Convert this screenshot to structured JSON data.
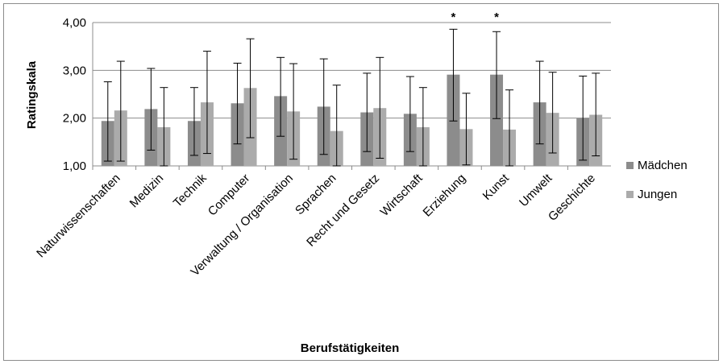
{
  "chart_data": {
    "type": "bar",
    "xlabel": "Berufstätigkeiten",
    "ylabel": "Ratingskala",
    "ylim": [
      1,
      4
    ],
    "yticks": [
      "1,00",
      "2,00",
      "3,00",
      "4,00"
    ],
    "grid": true,
    "legend_position": "right",
    "categories": [
      "Naturwissenschaften",
      "Medizin",
      "Technik",
      "Computer",
      "Verwaltung / Organisation",
      "Sprachen",
      "Recht und Gesetz",
      "Wirtschaft",
      "Erziehung",
      "Kunst",
      "Umwelt",
      "Geschichte"
    ],
    "series": [
      {
        "name": "Mädchen",
        "color": "#8c8c8c",
        "values": [
          1.94,
          2.19,
          1.94,
          2.31,
          2.46,
          2.24,
          2.12,
          2.09,
          2.91,
          2.91,
          2.33,
          2.0
        ],
        "error_low": [
          1.1,
          1.33,
          1.22,
          1.46,
          1.62,
          1.24,
          1.3,
          1.3,
          1.94,
          1.99,
          1.46,
          1.12
        ],
        "error_high": [
          2.76,
          3.04,
          2.64,
          3.15,
          3.27,
          3.24,
          2.94,
          2.87,
          3.86,
          3.81,
          3.19,
          2.88
        ]
      },
      {
        "name": "Jungen",
        "color": "#ababab",
        "values": [
          2.16,
          1.81,
          2.33,
          2.63,
          2.14,
          1.73,
          2.21,
          1.81,
          1.77,
          1.76,
          2.11,
          2.07
        ],
        "error_low": [
          1.1,
          0.99,
          1.26,
          1.59,
          1.14,
          0.76,
          1.16,
          0.99,
          1.02,
          0.93,
          1.27,
          1.21
        ],
        "error_high": [
          3.19,
          2.64,
          3.4,
          3.66,
          3.14,
          2.69,
          3.27,
          2.64,
          2.52,
          2.59,
          2.96,
          2.94
        ]
      }
    ],
    "annotations": [
      {
        "category": "Erziehung",
        "text": "*"
      },
      {
        "category": "Kunst",
        "text": "*"
      }
    ]
  }
}
